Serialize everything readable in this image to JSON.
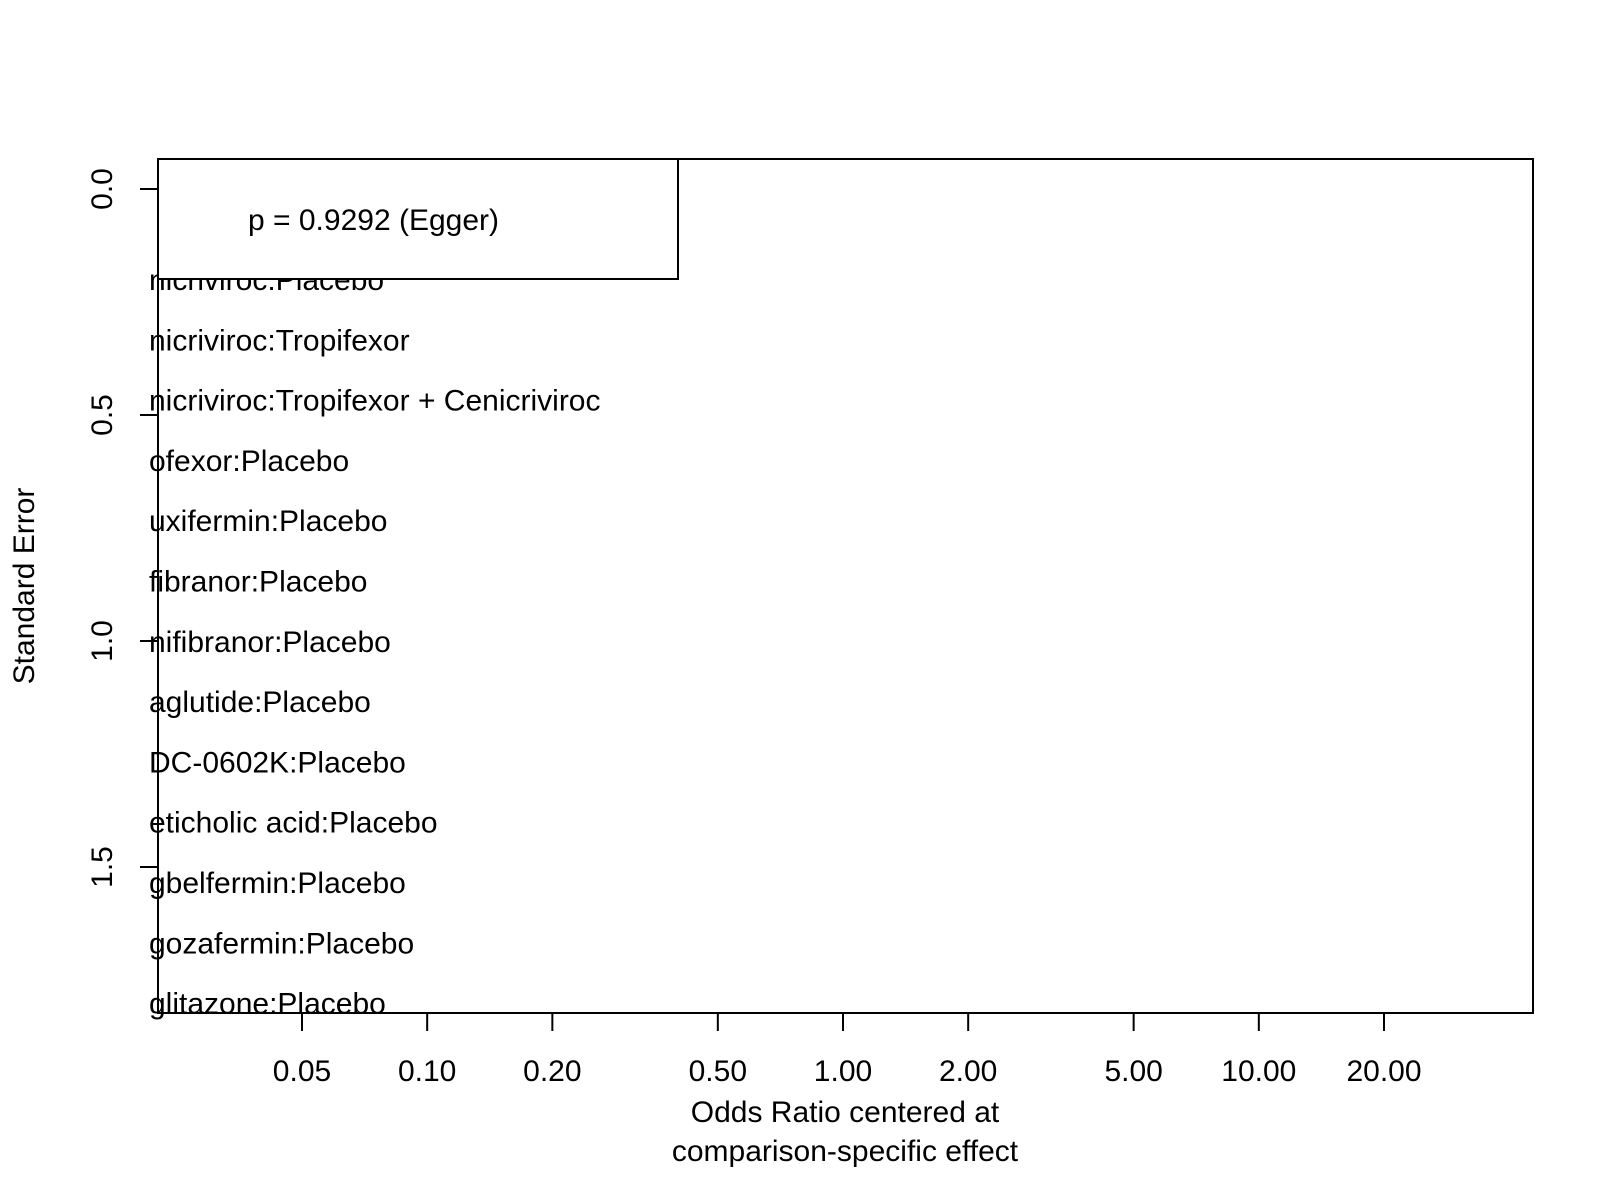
{
  "chart_data": {
    "type": "scatter",
    "subtype": "comparison-adjusted funnel plot",
    "xlabel_lines": [
      "Odds Ratio centered at",
      "comparison-specific effect"
    ],
    "ylabel": "Standard Error",
    "x_scale": "log",
    "x_ticks": [
      0.05,
      0.1,
      0.2,
      0.5,
      1.0,
      2.0,
      5.0,
      10.0,
      20.0
    ],
    "x_tick_labels": [
      "0.05",
      "0.10",
      "0.20",
      "0.50",
      "1.00",
      "2.00",
      "5.00",
      "10.00",
      "20.00"
    ],
    "y_ticks": [
      0.0,
      0.5,
      1.0,
      1.5
    ],
    "y_tick_labels": [
      "0.0",
      "0.5",
      "1.0",
      "1.5"
    ],
    "y_reversed": true,
    "ylim": [
      0.0,
      1.8
    ],
    "annotation": "p = 0.9292 (Egger)",
    "legend_position": "left (clipped by plot region)",
    "legend_entries": [
      "nicriviroc:Placebo",
      "nicriviroc:Tropifexor",
      "nicriviroc:Tropifexor + Cenicriviroc",
      "ofexor:Placebo",
      "uxifermin:Placebo",
      "fibranor:Placebo",
      "nifibranor:Placebo",
      "aglutide:Placebo",
      "DC-0602K:Placebo",
      "eticholic acid:Placebo",
      "gbelfermin:Placebo",
      "gozafermin:Placebo",
      "glitazone:Placebo"
    ],
    "points": [],
    "grid": false
  }
}
